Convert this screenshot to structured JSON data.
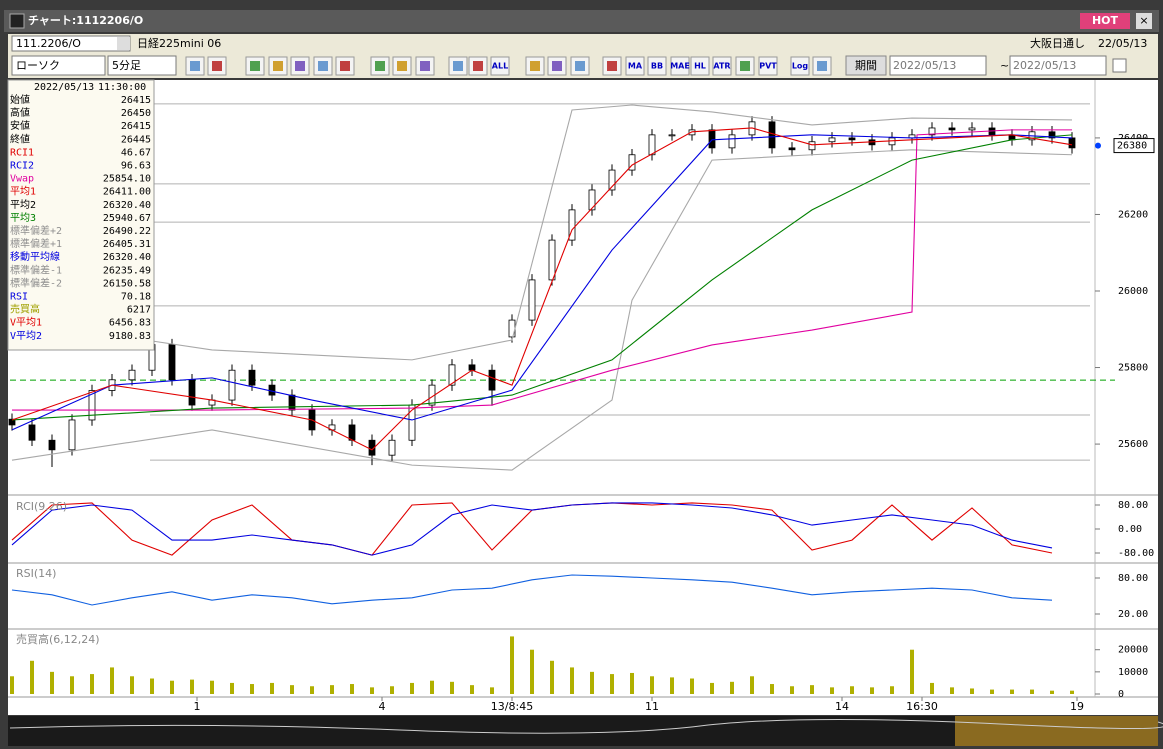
{
  "window": {
    "title": "チャート:1112206/O",
    "hot": "HOT"
  },
  "header": {
    "code": "111.2206/O",
    "instrument": "日経225mini 06",
    "session": "大阪日通し",
    "date": "22/05/13"
  },
  "toolbar": {
    "chart_type": "ローソク",
    "interval": "5分足",
    "buttons": [
      "ALL",
      "MA",
      "BB",
      "MAE",
      "HL",
      "ATR",
      "PVT",
      "Log"
    ],
    "period": "期間",
    "from": "2022/05/13",
    "tilde": "~",
    "to": "2022/05/13"
  },
  "info_panel": {
    "date": "2022/05/13",
    "time": "11:30:00",
    "rows": [
      {
        "label": "始値",
        "value": "26415",
        "color": "#000000"
      },
      {
        "label": "高値",
        "value": "26450",
        "color": "#000000"
      },
      {
        "label": "安値",
        "value": "26415",
        "color": "#000000"
      },
      {
        "label": "終値",
        "value": "26445",
        "color": "#000000"
      },
      {
        "label": "RCI1",
        "value": "46.67",
        "color": "#e00000"
      },
      {
        "label": "RCI2",
        "value": "96.63",
        "color": "#0000e0"
      },
      {
        "label": "Vwap",
        "value": "25854.10",
        "color": "#e000a0"
      },
      {
        "label": "平均1",
        "value": "26411.00",
        "color": "#e00000"
      },
      {
        "label": "平均2",
        "value": "26320.40",
        "color": "#000000"
      },
      {
        "label": "平均3",
        "value": "25940.67",
        "color": "#008000"
      },
      {
        "label": "標準偏差+2",
        "value": "26490.22",
        "color": "#909090"
      },
      {
        "label": "標準偏差+1",
        "value": "26405.31",
        "color": "#909090"
      },
      {
        "label": "移動平均線",
        "value": "26320.40",
        "color": "#0000e0"
      },
      {
        "label": "標準偏差-1",
        "value": "26235.49",
        "color": "#909090"
      },
      {
        "label": "標準偏差-2",
        "value": "26150.58",
        "color": "#909090"
      },
      {
        "label": "RSI",
        "value": "70.18",
        "color": "#0000e0"
      },
      {
        "label": "売買高",
        "value": "6217",
        "color": "#a0a000"
      },
      {
        "label": "V平均1",
        "value": "6456.83",
        "color": "#e00000"
      },
      {
        "label": "V平均2",
        "value": "9180.83",
        "color": "#0000e0"
      }
    ]
  },
  "chart_data": [
    {
      "type": "candlestick",
      "xlim": [
        0,
        216
      ],
      "ylim": [
        25480,
        26520
      ],
      "yticks": [
        25600,
        25800,
        26000,
        26200,
        26400
      ],
      "up_color": "#ffffff",
      "down_color": "#000000",
      "x": [
        0,
        4,
        8,
        12,
        16,
        20,
        24,
        28,
        32,
        36,
        40,
        44,
        48,
        52,
        56,
        60,
        64,
        68,
        72,
        76,
        80,
        84,
        88,
        92,
        96,
        100,
        104,
        108,
        112,
        116,
        120,
        124,
        128,
        132,
        136,
        140,
        144,
        148,
        152,
        156,
        160,
        164,
        168,
        172,
        176,
        180,
        184,
        188,
        192,
        196,
        200,
        204,
        208,
        212
      ],
      "open": [
        25665,
        25650,
        25610,
        25585,
        25663,
        25740,
        25768,
        25793,
        25860,
        25768,
        25702,
        25715,
        25793,
        25754,
        25728,
        25689,
        25637,
        25650,
        25610,
        25571,
        25610,
        25702,
        25754,
        25807,
        25793,
        25880,
        25924,
        26029,
        26133,
        26212,
        26264,
        26316,
        26356,
        26408,
        26408,
        26421,
        26374,
        26408,
        26442,
        26374,
        26369,
        26390,
        26400,
        26395,
        26382,
        26400,
        26408,
        26426,
        26421,
        26426,
        26408,
        26395,
        26416,
        26400
      ],
      "high": [
        25680,
        25665,
        25625,
        25678,
        25755,
        25783,
        25808,
        25875,
        25875,
        25783,
        25730,
        25808,
        25808,
        25769,
        25743,
        25704,
        25665,
        25665,
        25625,
        25625,
        25717,
        25769,
        25822,
        25822,
        25808,
        25939,
        26044,
        26148,
        26227,
        26279,
        26331,
        26371,
        26423,
        26423,
        26436,
        26436,
        26423,
        26457,
        26457,
        26389,
        26405,
        26415,
        26415,
        26410,
        26415,
        26423,
        26441,
        26441,
        26441,
        26441,
        26423,
        26431,
        26431,
        26415
      ],
      "low": [
        25635,
        25595,
        25540,
        25570,
        25648,
        25725,
        25753,
        25778,
        25753,
        25687,
        25687,
        25700,
        25739,
        25713,
        25674,
        25622,
        25622,
        25595,
        25545,
        25556,
        25595,
        25687,
        25739,
        25778,
        25700,
        25865,
        25909,
        26014,
        26118,
        26197,
        26249,
        26301,
        26341,
        26393,
        26393,
        26359,
        26359,
        26393,
        26359,
        26354,
        26354,
        26375,
        26380,
        26367,
        26367,
        26385,
        26393,
        26406,
        26406,
        26393,
        26380,
        26380,
        26385,
        26359
      ],
      "close": [
        25650,
        25610,
        25585,
        25663,
        25740,
        25768,
        25793,
        25860,
        25768,
        25702,
        25715,
        25793,
        25754,
        25728,
        25689,
        25637,
        25650,
        25610,
        25571,
        25610,
        25702,
        25754,
        25807,
        25793,
        25741,
        25924,
        26029,
        26133,
        26212,
        26264,
        26316,
        26356,
        26408,
        26408,
        26421,
        26374,
        26408,
        26442,
        26374,
        26369,
        26390,
        26400,
        26395,
        26382,
        26400,
        26408,
        26426,
        26421,
        26426,
        26408,
        26395,
        26416,
        26400,
        26374
      ],
      "levels": [
        26489,
        26280,
        26180,
        25961,
        25676,
        25558
      ],
      "dashed_level": 25767,
      "dashed_color": "#00a000",
      "last_price": 26380,
      "series": [
        {
          "color": "#a8a8a8",
          "x": [
            0,
            40,
            80,
            100,
            112,
            124,
            140,
            160,
            180,
            212
          ],
          "values": [
            25924,
            25846,
            25820,
            25872,
            26473,
            26486,
            26468,
            26434,
            26452,
            26447
          ]
        },
        {
          "color": "#a8a8a8",
          "x": [
            0,
            40,
            80,
            100,
            120,
            124,
            140,
            160,
            180,
            212
          ],
          "values": [
            25558,
            25637,
            25545,
            25532,
            25715,
            25976,
            26342,
            26356,
            26369,
            26356
          ]
        },
        {
          "color": "#e000a0",
          "x": [
            0,
            40,
            80,
            96,
            120,
            140,
            160,
            180,
            181,
            200,
            212
          ],
          "values": [
            25689,
            25689,
            25694,
            25702,
            25793,
            25859,
            25898,
            25945,
            26408,
            26421,
            26421
          ]
        },
        {
          "color": "#008000",
          "x": [
            0,
            40,
            80,
            100,
            120,
            140,
            160,
            180,
            200,
            212
          ],
          "values": [
            25663,
            25694,
            25702,
            25728,
            25820,
            26029,
            26212,
            26342,
            26395,
            26408
          ]
        },
        {
          "color": "#0000e0",
          "x": [
            0,
            20,
            40,
            60,
            80,
            100,
            120,
            140,
            160,
            180,
            200,
            212
          ],
          "values": [
            25637,
            25754,
            25773,
            25715,
            25663,
            25741,
            26107,
            26395,
            26408,
            26400,
            26408,
            26400
          ]
        },
        {
          "color": "#e00000",
          "x": [
            0,
            20,
            40,
            60,
            72,
            80,
            92,
            100,
            112,
            124,
            136,
            148,
            160,
            180,
            200,
            212
          ],
          "values": [
            25663,
            25754,
            25715,
            25663,
            25585,
            25689,
            25793,
            25754,
            26160,
            26329,
            26416,
            26426,
            26382,
            26395,
            26408,
            26382
          ]
        }
      ]
    },
    {
      "type": "line",
      "title": "RCI(9,26)",
      "xlim": [
        0,
        216
      ],
      "ylim": [
        -100,
        100
      ],
      "yticks": [
        {
          "value": 80,
          "label": "80.00"
        },
        {
          "value": 0,
          "label": "0.00"
        },
        {
          "value": -80,
          "label": "-80.00"
        }
      ],
      "series": [
        {
          "color": "#e00000",
          "x": [
            0,
            8,
            16,
            24,
            32,
            40,
            48,
            56,
            64,
            72,
            80,
            88,
            96,
            104,
            112,
            120,
            128,
            136,
            144,
            152,
            160,
            168,
            176,
            184,
            192,
            200,
            208
          ],
          "values": [
            -37,
            80,
            87,
            -37,
            -87,
            30,
            80,
            -37,
            -53,
            -87,
            80,
            87,
            -70,
            63,
            80,
            87,
            80,
            87,
            80,
            63,
            -70,
            -37,
            80,
            -37,
            70,
            -53,
            -80
          ]
        },
        {
          "color": "#0000e0",
          "x": [
            0,
            8,
            16,
            24,
            32,
            40,
            48,
            56,
            64,
            72,
            80,
            88,
            96,
            104,
            112,
            120,
            128,
            136,
            144,
            152,
            160,
            168,
            176,
            184,
            192,
            200,
            208
          ],
          "values": [
            -53,
            63,
            80,
            63,
            -37,
            -37,
            -20,
            -37,
            -53,
            -87,
            -53,
            47,
            80,
            63,
            80,
            87,
            87,
            80,
            70,
            47,
            13,
            30,
            47,
            30,
            13,
            -37,
            -63
          ]
        }
      ]
    },
    {
      "type": "line",
      "title": "RSI(14)",
      "xlim": [
        0,
        216
      ],
      "ylim": [
        0,
        100
      ],
      "yticks": [
        {
          "value": 80,
          "label": "80.00"
        },
        {
          "value": 20,
          "label": "20.00"
        }
      ],
      "series": [
        {
          "color": "#1060e0",
          "x": [
            0,
            8,
            16,
            24,
            32,
            40,
            48,
            56,
            64,
            72,
            80,
            88,
            96,
            104,
            112,
            120,
            128,
            136,
            144,
            152,
            160,
            168,
            176,
            184,
            192,
            200,
            208
          ],
          "values": [
            60,
            52,
            35,
            47,
            57,
            43,
            52,
            47,
            37,
            43,
            47,
            60,
            63,
            77,
            85,
            83,
            80,
            77,
            73,
            63,
            52,
            57,
            60,
            63,
            60,
            47,
            43
          ]
        }
      ]
    },
    {
      "type": "bar",
      "title": "売買高(6,12,24)",
      "xlim": [
        0,
        216
      ],
      "ylim": [
        0,
        28000
      ],
      "yticks": [
        0,
        10000,
        20000
      ],
      "color": "#b0b000",
      "x": [
        0,
        4,
        8,
        12,
        16,
        20,
        24,
        28,
        32,
        36,
        40,
        44,
        48,
        52,
        56,
        60,
        64,
        68,
        72,
        76,
        80,
        84,
        88,
        92,
        96,
        100,
        104,
        108,
        112,
        116,
        120,
        124,
        128,
        132,
        136,
        140,
        144,
        148,
        152,
        156,
        160,
        164,
        168,
        172,
        176,
        180,
        184,
        188,
        192,
        196,
        200,
        204,
        208,
        212
      ],
      "values": [
        8000,
        15000,
        10000,
        8000,
        9000,
        12000,
        8000,
        7000,
        6000,
        6500,
        6000,
        5000,
        4500,
        5000,
        4000,
        3500,
        4000,
        4500,
        3000,
        3500,
        5000,
        6000,
        5500,
        4000,
        3000,
        26000,
        20000,
        15000,
        12000,
        10000,
        9000,
        9500,
        8000,
        7500,
        7000,
        5000,
        5500,
        8000,
        4500,
        3500,
        4000,
        3000,
        3500,
        3000,
        3500,
        20000,
        5000,
        3000,
        2500,
        2000,
        2000,
        2000,
        1500,
        1500
      ],
      "xticks": [
        {
          "value": 37,
          "label": "1"
        },
        {
          "value": 74,
          "label": "4"
        },
        {
          "value": 100,
          "label": "13/8:45"
        },
        {
          "value": 128,
          "label": "11"
        },
        {
          "value": 166,
          "label": "14"
        },
        {
          "value": 182,
          "label": "16:30"
        },
        {
          "value": 213,
          "label": "19"
        }
      ]
    }
  ]
}
